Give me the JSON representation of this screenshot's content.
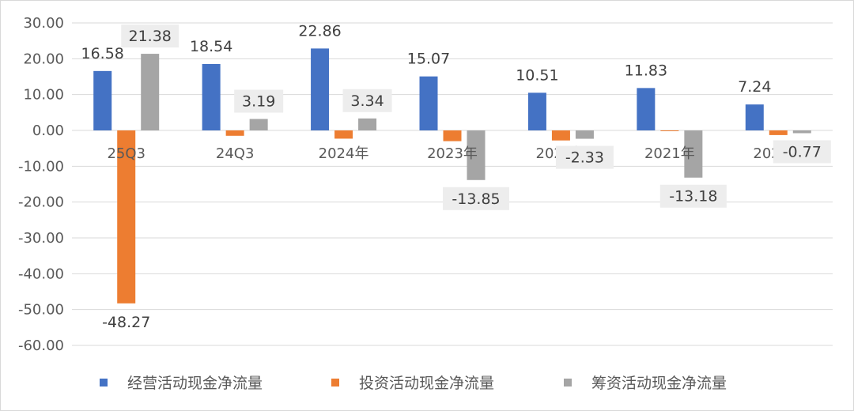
{
  "chart_data": {
    "type": "bar",
    "categories": [
      "25Q3",
      "24Q3",
      "2024年",
      "2023年",
      "2022年",
      "2021年",
      "2020年"
    ],
    "series": [
      {
        "name": "经营活动现金净流量",
        "color": "#4472C4",
        "values": [
          16.58,
          18.54,
          22.86,
          15.07,
          10.51,
          11.83,
          7.24
        ],
        "labels": [
          "16.58",
          "18.54",
          "22.86",
          "15.07",
          "10.51",
          "11.83",
          "7.24"
        ]
      },
      {
        "name": "投资活动现金净流量",
        "color": "#ED7D31",
        "values": [
          -48.27,
          -1.5,
          -2.3,
          -3.0,
          -2.8,
          -0.2,
          -1.3
        ],
        "labels": [
          "-48.27",
          null,
          null,
          null,
          null,
          null,
          null
        ]
      },
      {
        "name": "筹资活动现金净流量",
        "color": "#A5A5A5",
        "values": [
          21.38,
          3.19,
          3.34,
          -13.85,
          -2.33,
          -13.18,
          -0.77
        ],
        "labels": [
          "21.38",
          "3.19",
          "3.34",
          "-13.85",
          "-2.33",
          "-13.18",
          "-0.77"
        ]
      }
    ],
    "yticks": [
      "30.00",
      "20.00",
      "10.00",
      "0.00",
      "-10.00",
      "-20.00",
      "-30.00",
      "-40.00",
      "-50.00",
      "-60.00"
    ],
    "ylim": [
      -60,
      30
    ],
    "grid": true,
    "legend_position": "bottom"
  }
}
